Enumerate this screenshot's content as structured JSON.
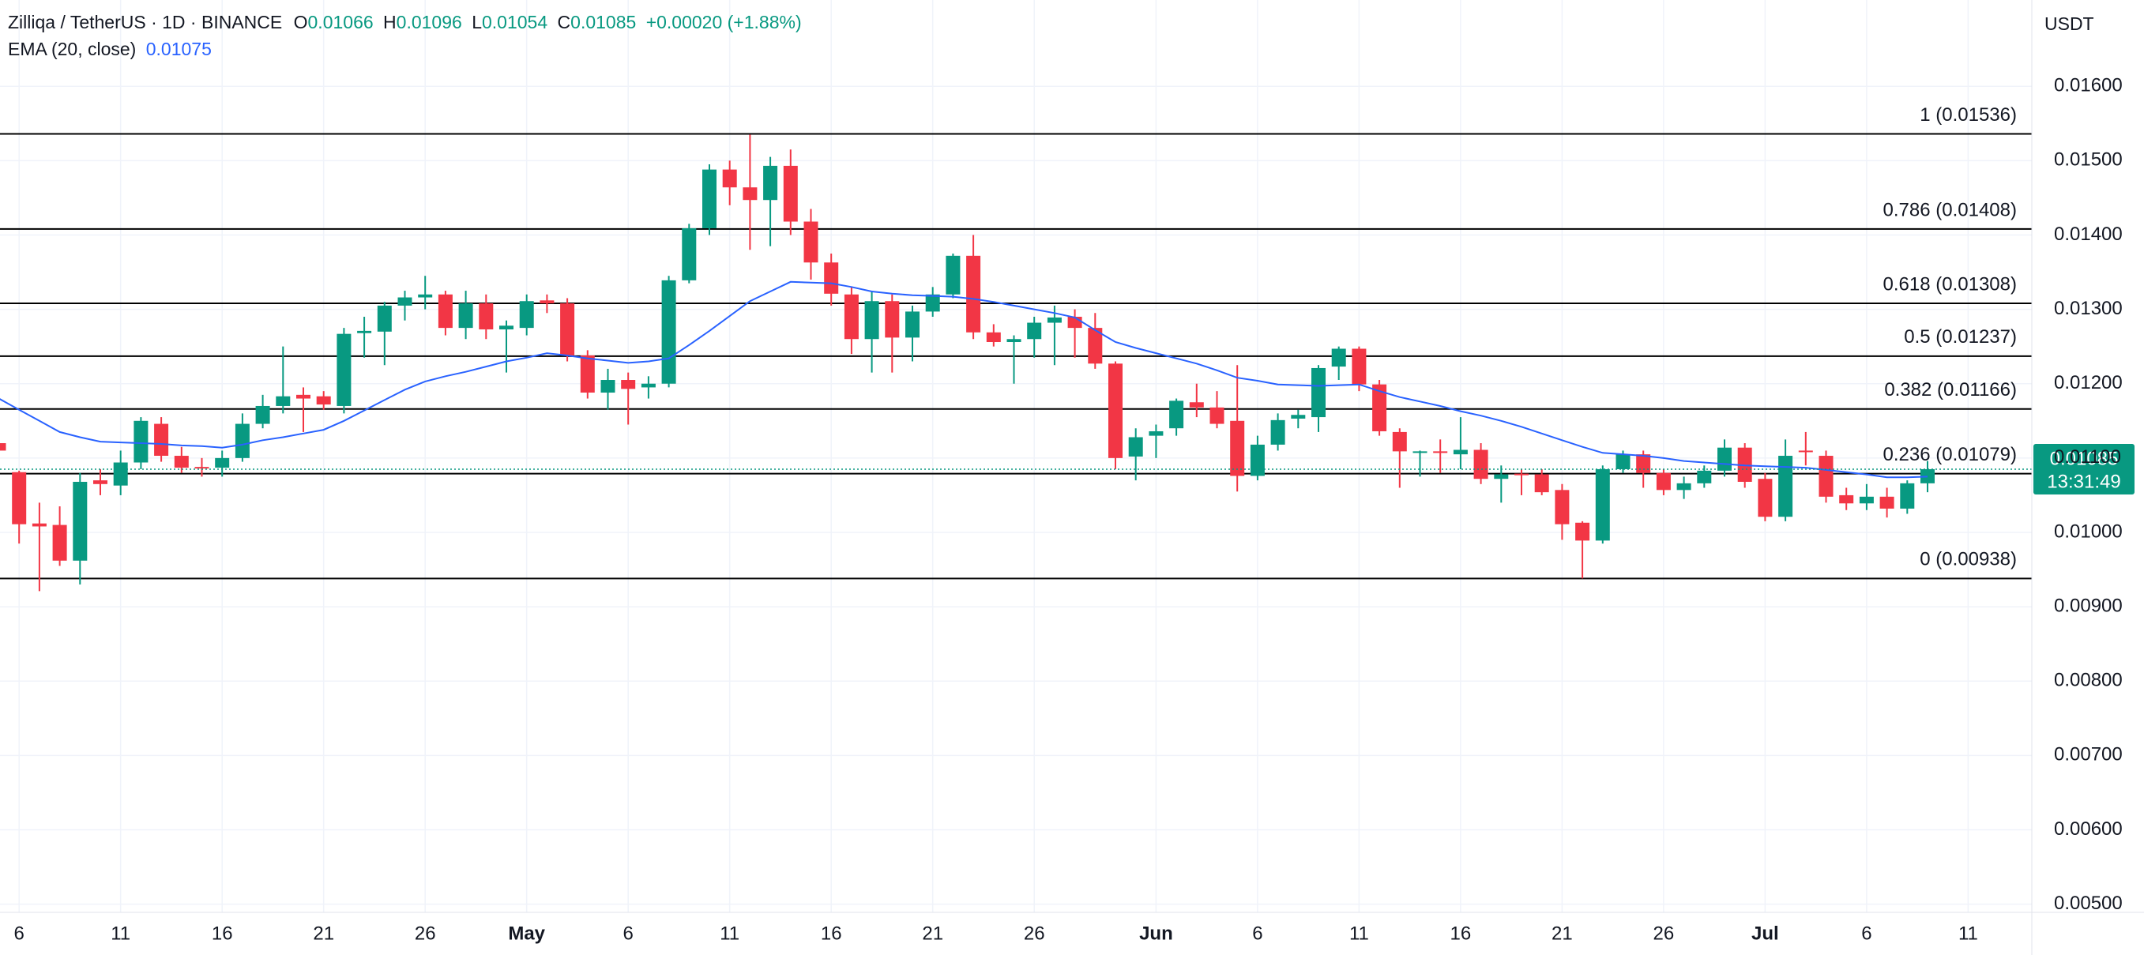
{
  "chart_data": {
    "type": "candlestick",
    "title": "Zilliqa / TetherUS · 1D · BINANCE",
    "header": {
      "open_label": "O",
      "open": "0.01066",
      "high_label": "H",
      "high": "0.01096",
      "low_label": "L",
      "low": "0.01054",
      "close_label": "C",
      "close": "0.01085",
      "change": "+0.00020 (+1.88%)"
    },
    "currency": "USDT",
    "last_price": "0.01085",
    "countdown": "13:31:49",
    "up_color": "#089981",
    "down_color": "#f23645",
    "ylim": [
      0.00489,
      0.01716
    ],
    "yticks": [
      {
        "value": 0.005,
        "label": "0.00500"
      },
      {
        "value": 0.006,
        "label": "0.00600"
      },
      {
        "value": 0.007,
        "label": "0.00700"
      },
      {
        "value": 0.008,
        "label": "0.00800"
      },
      {
        "value": 0.009,
        "label": "0.00900"
      },
      {
        "value": 0.01,
        "label": "0.01000"
      },
      {
        "value": 0.011,
        "label": "0.01100"
      },
      {
        "value": 0.012,
        "label": "0.01200"
      },
      {
        "value": 0.013,
        "label": "0.01300"
      },
      {
        "value": 0.014,
        "label": "0.01400"
      },
      {
        "value": 0.015,
        "label": "0.01500"
      },
      {
        "value": 0.016,
        "label": "0.01600"
      }
    ],
    "grid": true,
    "fib_levels": [
      {
        "value": 0.01536,
        "label": "1 (0.01536)"
      },
      {
        "value": 0.01408,
        "label": "0.786 (0.01408)"
      },
      {
        "value": 0.01308,
        "label": "0.618 (0.01308)"
      },
      {
        "value": 0.01237,
        "label": "0.5 (0.01237)"
      },
      {
        "value": 0.01166,
        "label": "0.382 (0.01166)"
      },
      {
        "value": 0.01079,
        "label": "0.236 (0.01079)"
      },
      {
        "value": 0.00938,
        "label": "0 (0.00938)"
      }
    ],
    "fib_color": "#000000",
    "categories": [
      null,
      "6",
      null,
      null,
      null,
      null,
      "11",
      null,
      null,
      null,
      null,
      "16",
      null,
      null,
      null,
      null,
      "21",
      null,
      null,
      null,
      null,
      "26",
      null,
      null,
      null,
      null,
      "May",
      null,
      null,
      null,
      null,
      "6",
      null,
      null,
      null,
      null,
      "11",
      null,
      null,
      null,
      null,
      "16",
      null,
      null,
      null,
      null,
      "21",
      null,
      null,
      null,
      null,
      "26",
      null,
      null,
      null,
      null,
      null,
      "Jun",
      null,
      null,
      null,
      null,
      "6",
      null,
      null,
      null,
      null,
      "11",
      null,
      null,
      null,
      null,
      "16",
      null,
      null,
      null,
      null,
      "21",
      null,
      null,
      null,
      null,
      "26",
      null,
      null,
      null,
      null,
      "Jul",
      null,
      null,
      null,
      null,
      "6",
      null,
      null,
      null,
      null,
      "11",
      null,
      null,
      null
    ],
    "open": [
      0.0112,
      0.01081,
      0.01012,
      0.0101,
      0.00962,
      0.0107,
      0.01063,
      0.01094,
      0.01146,
      0.01103,
      0.01088,
      0.01087,
      0.011,
      0.01146,
      0.0117,
      0.01185,
      0.01183,
      0.0117,
      0.01268,
      0.0127,
      0.01305,
      0.01316,
      0.0132,
      0.01275,
      0.01308,
      0.01273,
      0.01275,
      0.01312,
      0.01308,
      0.01238,
      0.01188,
      0.01205,
      0.01195,
      0.012,
      0.01339,
      0.01409,
      0.01488,
      0.01464,
      0.01447,
      0.01493,
      0.01418,
      0.01363,
      0.0132,
      0.0126,
      0.01311,
      0.01262,
      0.01297,
      0.0132,
      0.01372,
      0.01269,
      0.01256,
      0.0126,
      0.01282,
      0.0129,
      0.01275,
      0.01227,
      0.01102,
      0.0113,
      0.0114,
      0.01175,
      0.01168,
      0.0115,
      0.01076,
      0.01118,
      0.01153,
      0.01155,
      0.01223,
      0.01247,
      0.01199,
      0.01135,
      0.01107,
      0.01109,
      0.01105,
      0.01111,
      0.01072,
      0.01079,
      0.01078,
      0.01057,
      0.01013,
      0.00989,
      0.01085,
      0.01105,
      0.0108,
      0.01057,
      0.01066,
      0.01083,
      0.01114,
      0.01072,
      0.01021,
      0.0111,
      0.01103,
      0.0105,
      0.01039,
      0.01048,
      0.01032,
      0.01066,
      null,
      null,
      null,
      null,
      null
    ],
    "high": [
      0.0113,
      0.01083,
      0.0104,
      0.01035,
      0.0108,
      0.01085,
      0.0111,
      0.01155,
      0.01155,
      0.01115,
      0.011,
      0.0111,
      0.0116,
      0.01185,
      0.0125,
      0.01195,
      0.0119,
      0.01275,
      0.0129,
      0.0131,
      0.01325,
      0.01345,
      0.01325,
      0.01325,
      0.0132,
      0.01285,
      0.0132,
      0.0132,
      0.01315,
      0.01245,
      0.0122,
      0.01215,
      0.0121,
      0.01345,
      0.01415,
      0.01495,
      0.015,
      0.01535,
      0.01505,
      0.01515,
      0.01435,
      0.01375,
      0.0133,
      0.01325,
      0.0132,
      0.01305,
      0.0133,
      0.01375,
      0.014,
      0.0128,
      0.01265,
      0.0129,
      0.01305,
      0.013,
      0.01295,
      0.0123,
      0.0114,
      0.01145,
      0.0118,
      0.012,
      0.0119,
      0.01225,
      0.0113,
      0.0116,
      0.01165,
      0.01225,
      0.0125,
      0.0125,
      0.01205,
      0.0114,
      0.0111,
      0.01125,
      0.01155,
      0.0112,
      0.0109,
      0.01085,
      0.01085,
      0.01065,
      0.01015,
      0.0109,
      0.0111,
      0.0111,
      0.01085,
      0.01075,
      0.0109,
      0.01125,
      0.0112,
      0.0108,
      0.01125,
      0.01135,
      0.0111,
      0.0106,
      0.01065,
      0.0106,
      0.0107,
      0.01096,
      null,
      null,
      null,
      null,
      null
    ],
    "low": [
      0.011,
      0.00985,
      0.00921,
      0.00955,
      0.0093,
      0.0105,
      0.0105,
      0.01085,
      0.01095,
      0.0108,
      0.01075,
      0.01075,
      0.01095,
      0.0114,
      0.0116,
      0.01135,
      0.01165,
      0.0116,
      0.01235,
      0.01225,
      0.01285,
      0.013,
      0.01265,
      0.0126,
      0.0126,
      0.01215,
      0.01265,
      0.01295,
      0.0123,
      0.0118,
      0.01165,
      0.01145,
      0.0118,
      0.01195,
      0.01335,
      0.014,
      0.0144,
      0.0138,
      0.01385,
      0.014,
      0.0134,
      0.01305,
      0.0124,
      0.01215,
      0.01215,
      0.0123,
      0.0129,
      0.01315,
      0.0126,
      0.0125,
      0.012,
      0.01235,
      0.01225,
      0.01235,
      0.0122,
      0.01085,
      0.0107,
      0.011,
      0.0113,
      0.01155,
      0.0114,
      0.01055,
      0.0107,
      0.0111,
      0.0114,
      0.01135,
      0.01205,
      0.0119,
      0.0113,
      0.0106,
      0.01075,
      0.0108,
      0.01085,
      0.01065,
      0.0104,
      0.0105,
      0.0105,
      0.0099,
      0.00938,
      0.00985,
      0.0108,
      0.0106,
      0.0105,
      0.01045,
      0.0106,
      0.01075,
      0.0106,
      0.01015,
      0.01015,
      0.0109,
      0.0104,
      0.0103,
      0.0103,
      0.0102,
      0.01025,
      0.01054,
      null,
      null,
      null,
      null,
      null
    ],
    "close": [
      0.0111,
      0.01011,
      0.01008,
      0.00962,
      0.01068,
      0.01065,
      0.01094,
      0.0115,
      0.01103,
      0.01087,
      0.01086,
      0.011,
      0.01146,
      0.0117,
      0.01183,
      0.0118,
      0.01172,
      0.01267,
      0.01271,
      0.01305,
      0.01316,
      0.0132,
      0.01275,
      0.01308,
      0.01273,
      0.01278,
      0.01311,
      0.01308,
      0.01238,
      0.01188,
      0.01205,
      0.01193,
      0.012,
      0.01339,
      0.01409,
      0.01488,
      0.01464,
      0.01447,
      0.01493,
      0.01418,
      0.01363,
      0.01321,
      0.0126,
      0.01311,
      0.01262,
      0.01297,
      0.0132,
      0.01372,
      0.01269,
      0.01256,
      0.0126,
      0.01282,
      0.01289,
      0.01275,
      0.01227,
      0.011,
      0.01128,
      0.01136,
      0.01177,
      0.01168,
      0.01146,
      0.01076,
      0.01118,
      0.01151,
      0.01158,
      0.01221,
      0.01247,
      0.01199,
      0.01136,
      0.01109,
      0.01109,
      0.01107,
      0.01111,
      0.01072,
      0.01078,
      0.01077,
      0.01054,
      0.01011,
      0.00989,
      0.01085,
      0.01105,
      0.0108,
      0.01057,
      0.01066,
      0.01083,
      0.01114,
      0.01068,
      0.01021,
      0.01103,
      0.01108,
      0.01048,
      0.01039,
      0.01048,
      0.01032,
      0.01066,
      0.01085,
      null,
      null,
      null,
      null,
      null
    ],
    "ema": {
      "name": "EMA (20, close)",
      "value_label": "0.01075",
      "color": "#2962ff",
      "values": [
        0.0118,
        0.01165,
        0.0115,
        0.01135,
        0.01128,
        0.01122,
        0.01121,
        0.0112,
        0.01119,
        0.01117,
        0.01116,
        0.01114,
        0.01118,
        0.01124,
        0.01128,
        0.01133,
        0.01138,
        0.0115,
        0.01164,
        0.01178,
        0.01192,
        0.01203,
        0.0121,
        0.01216,
        0.01223,
        0.0123,
        0.01235,
        0.01241,
        0.01238,
        0.01234,
        0.01231,
        0.01228,
        0.0123,
        0.01234,
        0.01252,
        0.01271,
        0.01291,
        0.01311,
        0.01324,
        0.01337,
        0.01336,
        0.01335,
        0.0133,
        0.01324,
        0.01321,
        0.01319,
        0.01318,
        0.01317,
        0.01314,
        0.0131,
        0.01305,
        0.013,
        0.01295,
        0.01289,
        0.01272,
        0.01256,
        0.01248,
        0.01241,
        0.01234,
        0.01227,
        0.01218,
        0.01208,
        0.01204,
        0.01199,
        0.01198,
        0.01197,
        0.01198,
        0.01199,
        0.0119,
        0.01182,
        0.01176,
        0.0117,
        0.01163,
        0.01157,
        0.0115,
        0.01142,
        0.01133,
        0.01124,
        0.01115,
        0.01107,
        0.01105,
        0.01103,
        0.011,
        0.01096,
        0.01094,
        0.01092,
        0.0109,
        0.01089,
        0.01088,
        0.01087,
        0.01084,
        0.01081,
        0.01078,
        0.01074,
        0.01074,
        0.01075,
        null,
        null,
        null,
        null,
        null
      ]
    }
  }
}
